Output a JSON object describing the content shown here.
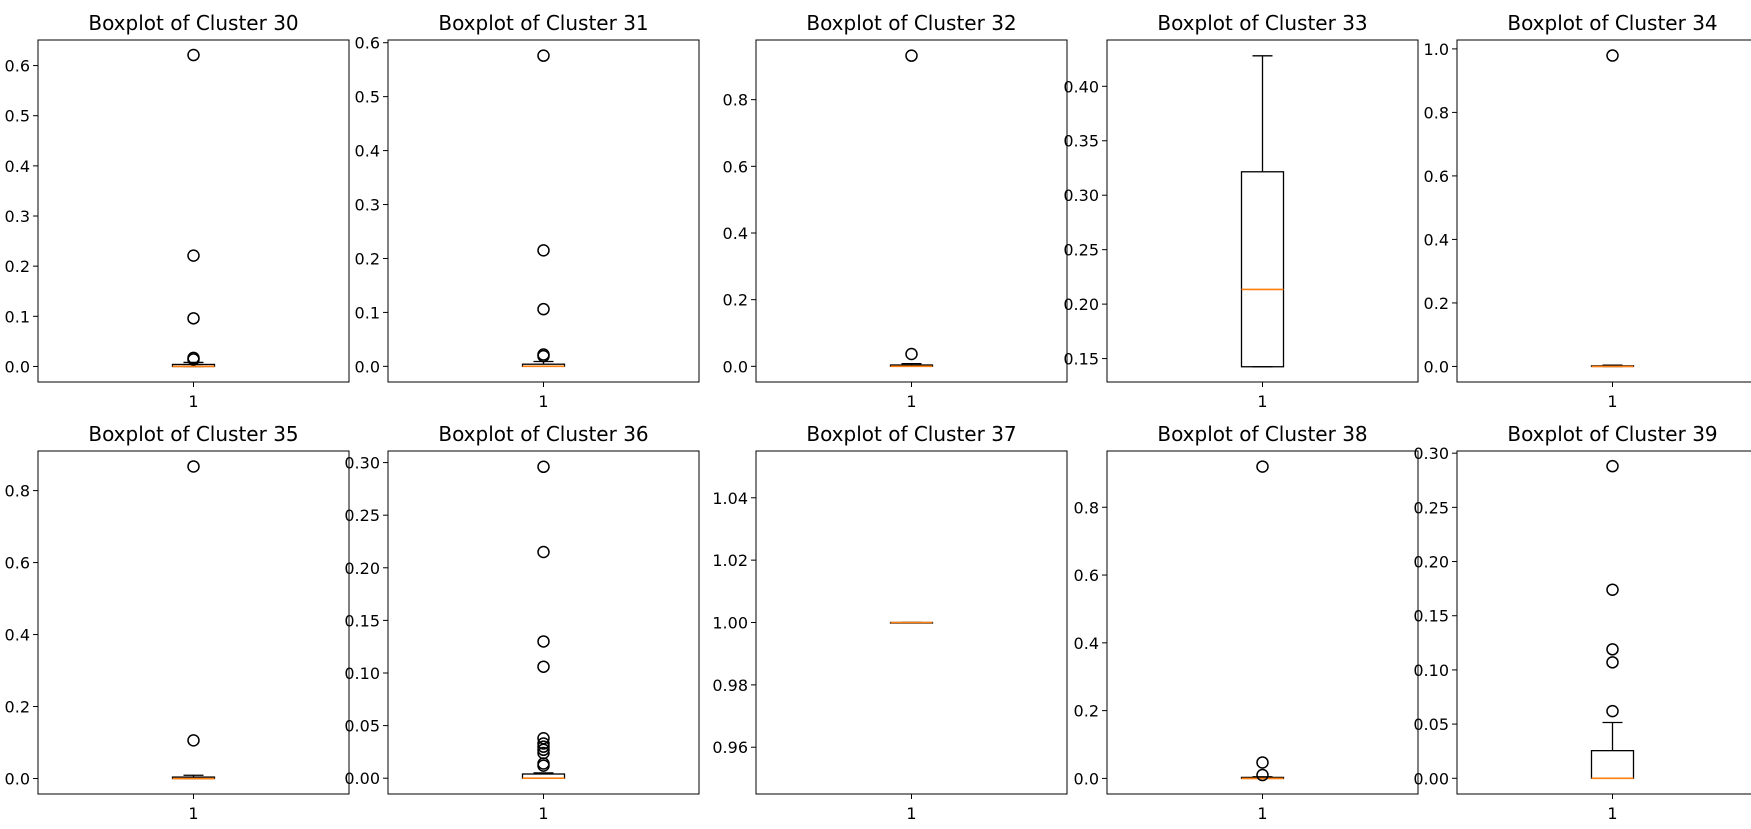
{
  "chart_data": [
    {
      "type": "box",
      "title": "Boxplot of Cluster 30",
      "xtick": "1",
      "ylim": [
        -0.031,
        0.651
      ],
      "yticks": [
        0.0,
        0.1,
        0.2,
        0.3,
        0.4,
        0.5,
        0.6
      ],
      "ytick_labels": [
        "0.0",
        "0.1",
        "0.2",
        "0.3",
        "0.4",
        "0.5",
        "0.6"
      ],
      "box": {
        "whisker_low": 0.0,
        "q1": 0.0,
        "median": 0.0,
        "q3": 0.004,
        "whisker_high": 0.008
      },
      "fliers": [
        0.621,
        0.221,
        0.096,
        0.017,
        0.014
      ]
    },
    {
      "type": "box",
      "title": "Boxplot of Cluster 31",
      "xtick": "1",
      "ylim": [
        -0.029,
        0.605
      ],
      "yticks": [
        0.0,
        0.1,
        0.2,
        0.3,
        0.4,
        0.5,
        0.6
      ],
      "ytick_labels": [
        "0.0",
        "0.1",
        "0.2",
        "0.3",
        "0.4",
        "0.5",
        "0.6"
      ],
      "box": {
        "whisker_low": 0.0,
        "q1": 0.0,
        "median": 0.0,
        "q3": 0.004,
        "whisker_high": 0.009
      },
      "fliers": [
        0.576,
        0.215,
        0.106,
        0.022,
        0.019
      ]
    },
    {
      "type": "box",
      "title": "Boxplot of Cluster 32",
      "xtick": "1",
      "ylim": [
        -0.047,
        0.979
      ],
      "yticks": [
        0.0,
        0.2,
        0.4,
        0.6,
        0.8
      ],
      "ytick_labels": [
        "0.0",
        "0.2",
        "0.4",
        "0.6",
        "0.8"
      ],
      "box": {
        "whisker_low": 0.0,
        "q1": 0.0,
        "median": 0.0,
        "q3": 0.004,
        "whisker_high": 0.008
      },
      "fliers": [
        0.932,
        0.037
      ]
    },
    {
      "type": "box",
      "title": "Boxplot of Cluster 33",
      "xtick": "1",
      "ylim": [
        0.1285,
        0.4425
      ],
      "yticks": [
        0.15,
        0.2,
        0.25,
        0.3,
        0.35,
        0.4
      ],
      "ytick_labels": [
        "0.15",
        "0.20",
        "0.25",
        "0.30",
        "0.35",
        "0.40"
      ],
      "box": {
        "whisker_low": 0.1425,
        "q1": 0.1425,
        "median": 0.2135,
        "q3": 0.3215,
        "whisker_high": 0.428
      },
      "fliers": []
    },
    {
      "type": "box",
      "title": "Boxplot of Cluster 34",
      "xtick": "1",
      "ylim": [
        -0.049,
        1.028
      ],
      "yticks": [
        0.0,
        0.2,
        0.4,
        0.6,
        0.8,
        1.0
      ],
      "ytick_labels": [
        "0.0",
        "0.2",
        "0.4",
        "0.6",
        "0.8",
        "1.0"
      ],
      "box": {
        "whisker_low": 0.0,
        "q1": 0.0,
        "median": 0.0,
        "q3": 0.002,
        "whisker_high": 0.004
      },
      "fliers": [
        0.979
      ]
    },
    {
      "type": "box",
      "title": "Boxplot of Cluster 35",
      "xtick": "1",
      "ylim": [
        -0.043,
        0.91
      ],
      "yticks": [
        0.0,
        0.2,
        0.4,
        0.6,
        0.8
      ],
      "ytick_labels": [
        "0.0",
        "0.2",
        "0.4",
        "0.6",
        "0.8"
      ],
      "box": {
        "whisker_low": 0.0,
        "q1": 0.0,
        "median": 0.0,
        "q3": 0.004,
        "whisker_high": 0.009
      },
      "fliers": [
        0.867,
        0.106
      ]
    },
    {
      "type": "box",
      "title": "Boxplot of Cluster 36",
      "xtick": "1",
      "ylim": [
        -0.015,
        0.311
      ],
      "yticks": [
        0.0,
        0.05,
        0.1,
        0.15,
        0.2,
        0.25,
        0.3
      ],
      "ytick_labels": [
        "0.00",
        "0.05",
        "0.10",
        "0.15",
        "0.20",
        "0.25",
        "0.30"
      ],
      "box": {
        "whisker_low": 0.0,
        "q1": 0.0,
        "median": 0.0,
        "q3": 0.004,
        "whisker_high": 0.005
      },
      "fliers": [
        0.296,
        0.215,
        0.13,
        0.106,
        0.038,
        0.033,
        0.03,
        0.027,
        0.024,
        0.014,
        0.012
      ]
    },
    {
      "type": "box",
      "title": "Boxplot of Cluster 37",
      "xtick": "1",
      "ylim": [
        0.945,
        1.055
      ],
      "yticks": [
        0.96,
        0.98,
        1.0,
        1.02,
        1.04
      ],
      "ytick_labels": [
        "0.96",
        "0.98",
        "1.00",
        "1.02",
        "1.04"
      ],
      "box": {
        "whisker_low": 1.0,
        "q1": 1.0,
        "median": 1.0,
        "q3": 1.0,
        "whisker_high": 1.0
      },
      "fliers": []
    },
    {
      "type": "box",
      "title": "Boxplot of Cluster 38",
      "xtick": "1",
      "ylim": [
        -0.046,
        0.966
      ],
      "yticks": [
        0.0,
        0.2,
        0.4,
        0.6,
        0.8
      ],
      "ytick_labels": [
        "0.0",
        "0.2",
        "0.4",
        "0.6",
        "0.8"
      ],
      "box": {
        "whisker_low": 0.0,
        "q1": 0.0,
        "median": 0.0,
        "q3": 0.003,
        "whisker_high": 0.005
      },
      "fliers": [
        0.92,
        0.047,
        0.01
      ]
    },
    {
      "type": "box",
      "title": "Boxplot of Cluster 39",
      "xtick": "1",
      "ylim": [
        -0.0145,
        0.302
      ],
      "yticks": [
        0.0,
        0.05,
        0.1,
        0.15,
        0.2,
        0.25,
        0.3
      ],
      "ytick_labels": [
        "0.00",
        "0.05",
        "0.10",
        "0.15",
        "0.20",
        "0.25",
        "0.30"
      ],
      "box": {
        "whisker_low": 0.0,
        "q1": 0.0,
        "median": 0.0,
        "q3": 0.0255,
        "whisker_high": 0.0515
      },
      "fliers": [
        0.288,
        0.174,
        0.119,
        0.107,
        0.062
      ]
    }
  ],
  "colors": {
    "box_line": "#000000",
    "median": "#ff7f0e",
    "flier_edge": "#000000",
    "background": "#ffffff"
  }
}
